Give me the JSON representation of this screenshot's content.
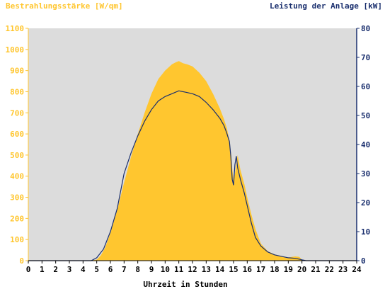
{
  "chart_data": {
    "type": "area",
    "title_left": "Bestrahlungsstärke [W/qm]",
    "title_right": "Leistung der Anlage [kW]",
    "xlabel": "Uhrzeit in Stunden",
    "x_ticks": [
      "0",
      "1",
      "2",
      "3",
      "4",
      "5",
      "6",
      "7",
      "8",
      "9",
      "10",
      "11",
      "12",
      "13",
      "14",
      "15",
      "16",
      "17",
      "18",
      "19",
      "20",
      "21",
      "22",
      "23",
      "24"
    ],
    "xlim": [
      0,
      24
    ],
    "ylim_left": [
      0,
      1100
    ],
    "ylim_right": [
      0,
      80
    ],
    "y_ticks_left": [
      "0",
      "100",
      "200",
      "300",
      "400",
      "500",
      "600",
      "700",
      "800",
      "900",
      "1000",
      "1100"
    ],
    "y_ticks_right": [
      "0",
      "10",
      "20",
      "30",
      "40",
      "50",
      "60",
      "70",
      "80"
    ],
    "grid": false,
    "colors": {
      "plot_background": "#dcdcdc",
      "irradiance_fill": "#ffc62f",
      "power_line": "#1a2f6e",
      "left_axis": "#ffc62f",
      "right_axis": "#1a2f6e"
    },
    "series": [
      {
        "axis": "left",
        "style": "area",
        "x": [
          0,
          4.5,
          5,
          5.3,
          5.6,
          6,
          6.5,
          7,
          7.5,
          8,
          8.5,
          9,
          9.5,
          10,
          10.5,
          10.8,
          11,
          11.3,
          11.6,
          12,
          12.5,
          13,
          13.5,
          14,
          14.3,
          14.5,
          14.7,
          14.85,
          14.9,
          15.0,
          15.1,
          15.3,
          15.5,
          15.8,
          16,
          16.3,
          16.6,
          17,
          17.5,
          18,
          18.5,
          19,
          19.5,
          19.8,
          20,
          20.2,
          24
        ],
        "y": [
          0,
          0,
          5,
          25,
          60,
          130,
          240,
          370,
          490,
          600,
          700,
          790,
          860,
          900,
          930,
          940,
          945,
          935,
          930,
          920,
          890,
          850,
          790,
          720,
          670,
          630,
          570,
          490,
          440,
          380,
          410,
          500,
          430,
          360,
          300,
          220,
          150,
          80,
          45,
          30,
          20,
          15,
          20,
          18,
          5,
          0,
          0
        ]
      },
      {
        "axis": "right",
        "style": "line",
        "x": [
          0,
          4.6,
          5,
          5.5,
          6,
          6.5,
          7,
          7.5,
          8,
          8.5,
          9,
          9.5,
          10,
          10.5,
          11,
          11.5,
          12,
          12.5,
          13,
          13.5,
          14,
          14.3,
          14.5,
          14.7,
          14.8,
          14.9,
          15.0,
          15.1,
          15.2,
          15.3,
          15.5,
          15.8,
          16,
          16.3,
          16.6,
          17,
          17.5,
          18,
          18.5,
          19,
          19.5,
          19.8,
          20,
          20.3,
          24
        ],
        "y": [
          0,
          0,
          1,
          4,
          10,
          18,
          30,
          37,
          43,
          48,
          52,
          55,
          56.5,
          57.5,
          58.5,
          58,
          57.5,
          56.5,
          54.5,
          52,
          49,
          46.5,
          44,
          41,
          36,
          28,
          26,
          33,
          36,
          32,
          28,
          23,
          19,
          13,
          8,
          5,
          3,
          2,
          1.5,
          1,
          0.8,
          0.5,
          0.3,
          0,
          0
        ]
      }
    ]
  }
}
